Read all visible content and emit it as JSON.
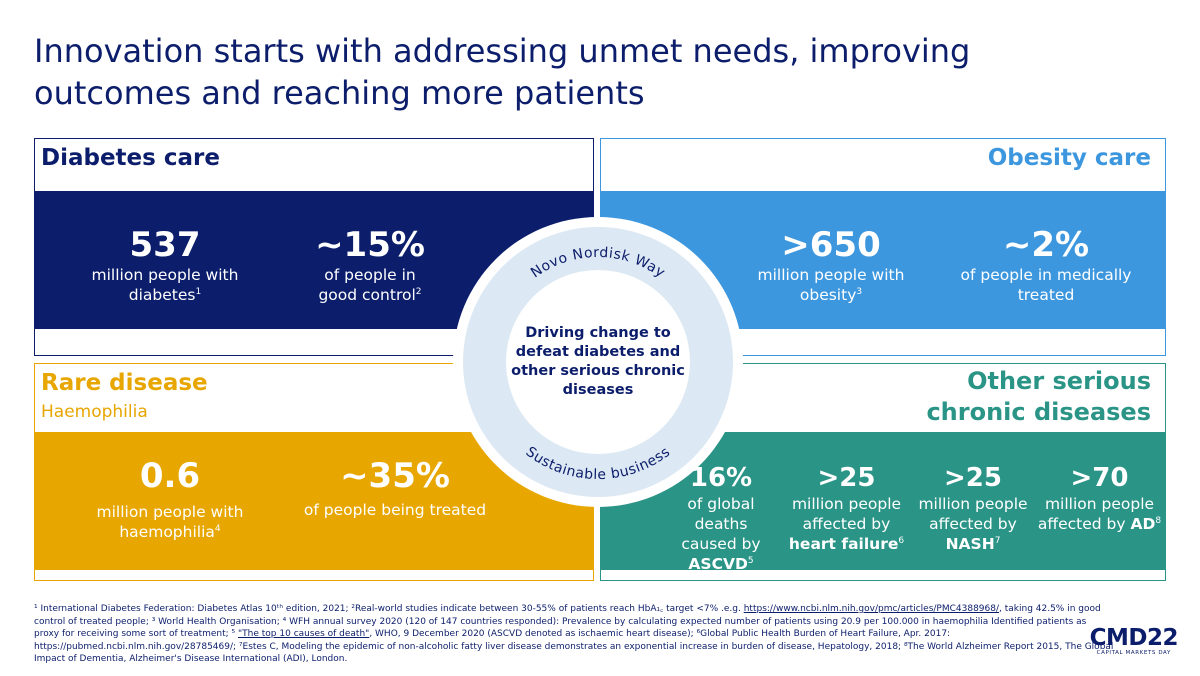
{
  "title": "Innovation starts with addressing unmet needs, improving outcomes and reaching more patients",
  "colors": {
    "navy": "#0b1d6b",
    "blue": "#3d97de",
    "gold": "#e8a600",
    "teal": "#2a9486",
    "ring": "#dce8f3"
  },
  "diabetes": {
    "heading": "Diabetes care",
    "stats": [
      {
        "num": "537",
        "line1": "million people with",
        "line2": "diabetes",
        "sup": "1"
      },
      {
        "num": "~15%",
        "line1": "of people in",
        "line2": "good control",
        "sup": "2"
      }
    ]
  },
  "obesity": {
    "heading": "Obesity care",
    "stats": [
      {
        "num": ">650",
        "line1": "million people with",
        "line2": "obesity",
        "sup": "3"
      },
      {
        "num": "~2%",
        "line1": "of people in medically",
        "line2": "treated"
      }
    ]
  },
  "rare": {
    "heading": "Rare disease",
    "subheading": "Haemophilia",
    "stats": [
      {
        "num": "0.6",
        "line1": "million people with",
        "line2": "haemophilia",
        "sup": "4"
      },
      {
        "num": "~35%",
        "line1": "of people being treated"
      }
    ]
  },
  "other": {
    "heading_line1": "Other serious",
    "heading_line2": "chronic diseases",
    "stats": [
      {
        "num": "16%",
        "line1": "of global deaths",
        "line2": "caused by",
        "bold": "ASCVD",
        "sup": "5"
      },
      {
        "num": ">25",
        "line1": "million people",
        "line2": "affected by",
        "bold": "heart failure",
        "sup": "6"
      },
      {
        "num": ">25",
        "line1": "million people",
        "line2": "affected  by",
        "bold": "NASH",
        "sup": "7"
      },
      {
        "num": ">70",
        "line1": "million people",
        "line2": "affected by",
        "bold": "AD",
        "sup": "8"
      }
    ]
  },
  "circle": {
    "top_arc": "Novo Nordisk Way",
    "bottom_arc": "Sustainable business",
    "center": "Driving change to defeat diabetes and other serious chronic diseases"
  },
  "footnotes": {
    "part1": "¹ International Diabetes Federation: Diabetes Atlas 10ᵗʰ edition, 2021; ²Real-world studies indicate between 30-55% of patients reach HbA₁꜀ target <7% .e.g.",
    "link1": "https://www.ncbi.nlm.nih.gov/pmc/articles/PMC4388968/",
    "part2": ", taking 42.5% in good control of treated people; ³ World Health Organisation; ⁴ WFH annual survey 2020 (120 of 147 countries responded): Prevalence by calculating expected number of patients using 20.9 per 100.000 in haemophilia  Identified patients as proxy for receiving some sort of treatment; ⁵",
    "link2": "\"The top 10 causes of death\"",
    "part3": ", WHO, 9 December 2020 (ASCVD denoted as ischaemic heart disease); ⁶Global Public Health Burden of Heart Failure, Apr. 2017: https://pubmed.ncbi.nlm.nih.gov/28785469/; ⁷Estes C, Modeling the epidemic of non-alcoholic fatty liver disease demonstrates an exponential increase in burden of disease, Hepatology, 2018; ⁸The World Alzheimer Report 2015, The Global Impact of Dementia, Alzheimer's Disease International (ADI), London."
  },
  "logo": {
    "main": "CMD22",
    "sub": "CAPITAL MARKETS DAY"
  }
}
